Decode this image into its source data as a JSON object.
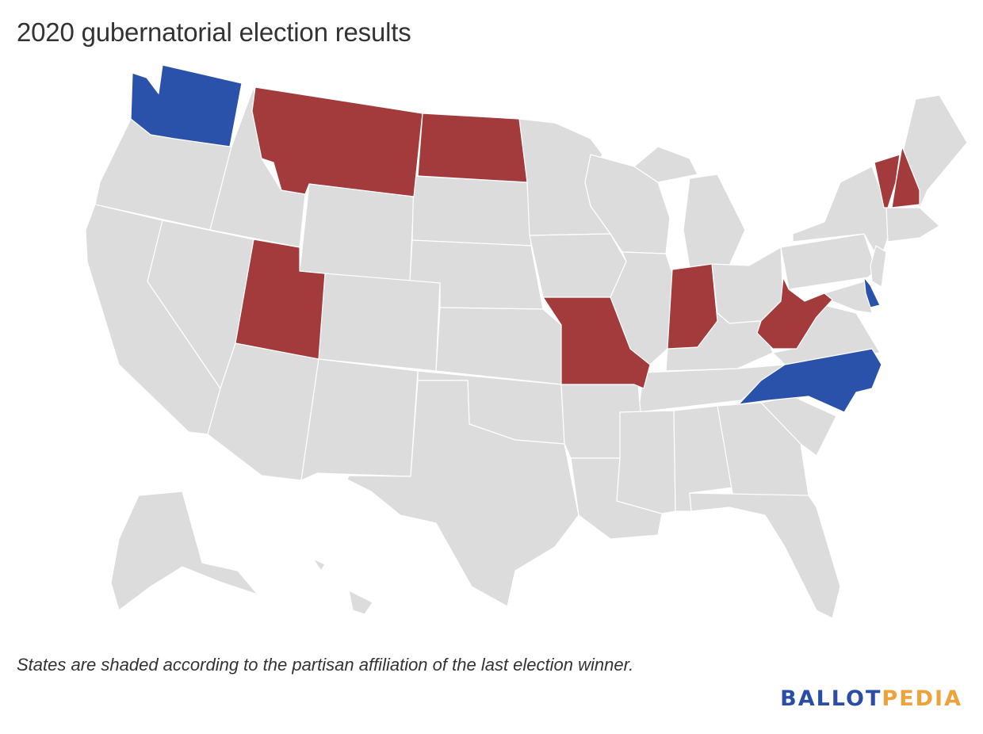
{
  "title": "2020 gubernatorial election results",
  "caption": "States are shaded according to the partisan affiliation of the last election winner.",
  "logo": {
    "part1": "BALLOT",
    "part2": "PEDIA"
  },
  "colors": {
    "republican": "#a33b3d",
    "democratic": "#2b52ab",
    "no_election": "#dcdcdc",
    "logo_primary": "#2b4da5",
    "logo_accent": "#eea23b"
  },
  "states": [
    {
      "name": "Washington",
      "party": "democratic"
    },
    {
      "name": "Montana",
      "party": "republican"
    },
    {
      "name": "North Dakota",
      "party": "republican"
    },
    {
      "name": "Utah",
      "party": "republican"
    },
    {
      "name": "Missouri",
      "party": "republican"
    },
    {
      "name": "Indiana",
      "party": "republican"
    },
    {
      "name": "West Virginia",
      "party": "republican"
    },
    {
      "name": "North Carolina",
      "party": "democratic"
    },
    {
      "name": "Vermont",
      "party": "republican"
    },
    {
      "name": "New Hampshire",
      "party": "republican"
    },
    {
      "name": "Delaware",
      "party": "democratic"
    }
  ]
}
